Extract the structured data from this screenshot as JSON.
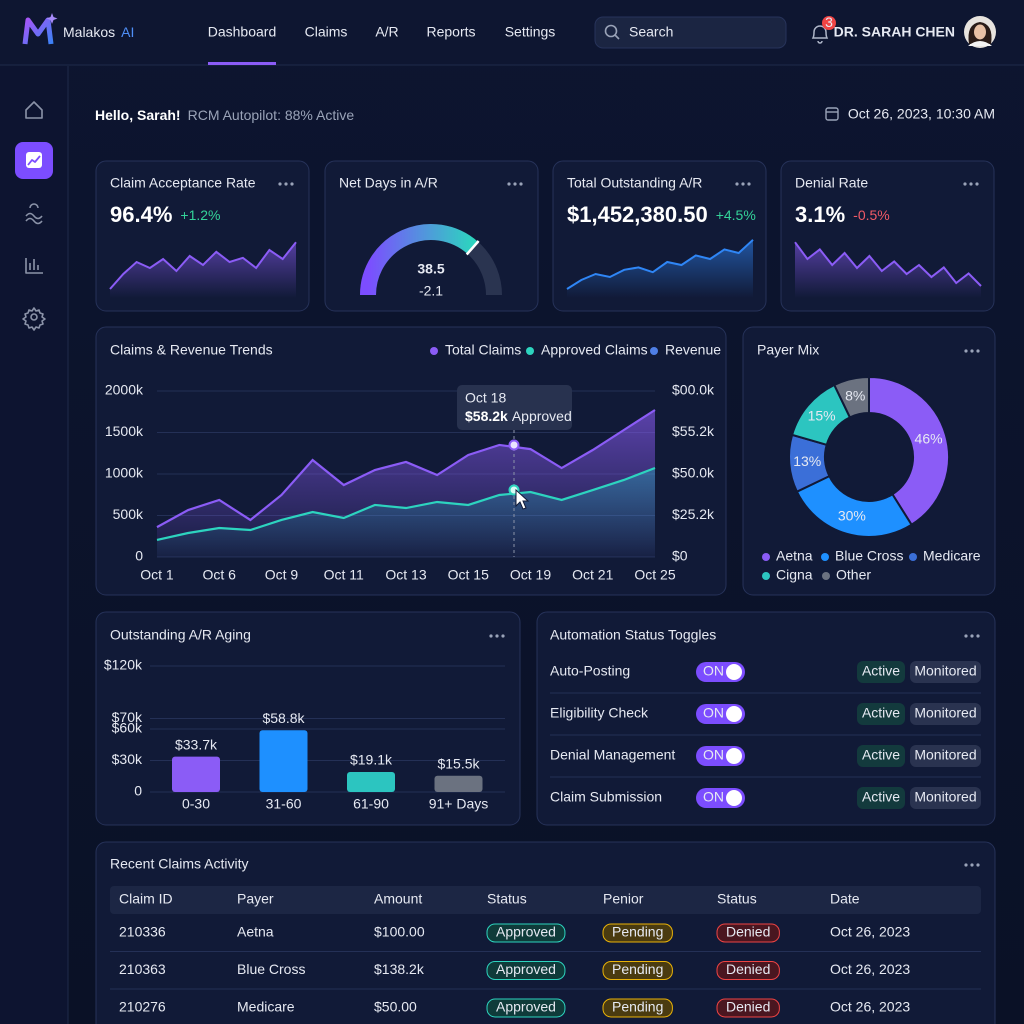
{
  "header": {
    "brand": "Malakos",
    "brand_suffix": "AI",
    "nav": [
      "Dashboard",
      "Claims",
      "A/R",
      "Reports",
      "Settings"
    ],
    "active_nav": 0,
    "search": "Search",
    "notification_count": 3,
    "user": "DR. SARAH CHEN"
  },
  "greeting": {
    "hello": "Hello, Sarah!",
    "status": "RCM Autopilot: 88% Active",
    "datetime": "Oct 26, 2023, 10:30 AM"
  },
  "kpis": [
    {
      "title": "Claim Acceptance Rate",
      "value": "96.4%",
      "change": "+1.2%",
      "change_color": "#34d399",
      "color": "#8b5cf6",
      "sparkline": [
        10,
        35,
        55,
        45,
        60,
        40,
        65,
        50,
        72,
        55,
        62,
        45,
        75,
        60,
        88
      ]
    },
    {
      "title": "Net Days in A/R",
      "value": "38.5",
      "change": "-2.1",
      "change_color": "#f05a66"
    },
    {
      "title": "Total Outstanding A/R",
      "value": "$1,452,380.50",
      "change": "+4.5%",
      "change_color": "#34d399",
      "color": "#2f86f6",
      "sparkline": [
        10,
        25,
        35,
        30,
        42,
        46,
        38,
        55,
        50,
        66,
        60,
        76,
        70,
        92
      ]
    },
    {
      "title": "Denial Rate",
      "value": "3.1%",
      "change": "-0.5%",
      "change_color": "#f05a66",
      "color": "#8b5cf6",
      "sparkline": [
        88,
        60,
        76,
        50,
        70,
        45,
        65,
        40,
        56,
        35,
        50,
        30,
        46,
        20,
        36,
        15
      ]
    }
  ],
  "chart_data": [
    {
      "type": "line",
      "title": "Claims & Revenue Trends",
      "categories": [
        "Oct 1",
        null,
        "Oct 6",
        null,
        "Oct 9",
        null,
        "Oct 11",
        null,
        "Oct 13",
        null,
        "Oct 15",
        null,
        "Oct 19",
        null,
        "Oct 21",
        null,
        "Oct 25"
      ],
      "series": [
        {
          "name": "Total Claims",
          "color": "#8b5cf6",
          "values": [
            360000,
            566000,
            687000,
            446000,
            747000,
            1169000,
            867000,
            1048000,
            1145000,
            988000,
            1229000,
            1350000,
            1300000,
            1072000,
            1289000,
            1530000,
            1771000
          ]
        },
        {
          "name": "Approved Claims",
          "color": "#2dd4bf",
          "values": [
            205000,
            289000,
            349000,
            325000,
            446000,
            542000,
            470000,
            627000,
            590000,
            663000,
            627000,
            747000,
            783000,
            687000,
            807000,
            928000,
            1072000
          ]
        },
        {
          "name": "Revenue",
          "color": "#4f7fe6",
          "values": [
            null,
            null,
            null,
            null,
            null,
            null,
            null,
            null,
            null,
            null,
            null,
            null,
            null,
            null,
            null,
            null,
            null
          ]
        }
      ],
      "ylim": [
        0,
        2000000
      ],
      "yticks": [
        0,
        {
          "value": 500000,
          "label": "500k"
        },
        {
          "value": 1000000,
          "label": "1000k"
        },
        {
          "value": 1500000,
          "label": "1500k"
        },
        {
          "value": 2000000,
          "label": "2000k"
        }
      ],
      "y2_labels": [
        "$0",
        "$25.2k",
        "$50.0k",
        "$55.2k",
        "$00.0k"
      ],
      "tooltip": {
        "title": "Oct 18",
        "value": "$58.2k",
        "label": "Approved"
      },
      "grid": true
    },
    {
      "type": "pie",
      "title": "Payer Mix",
      "categories": [
        "Aetna",
        "Blue Cross",
        "Medicare",
        "Cigna",
        "Other"
      ],
      "values": [
        46,
        30,
        13,
        15,
        8
      ],
      "value_labels": [
        "46%",
        "30%",
        "13%",
        "15%",
        "8%"
      ],
      "colors": [
        "#8b5cf6",
        "#1e90ff",
        "#3b6fd8",
        "#2cc5c0",
        "#6b7280"
      ]
    },
    {
      "type": "bar",
      "title": "Outstanding A/R Aging",
      "categories": [
        "0-30",
        "31-60",
        "61-90",
        "91+ Days"
      ],
      "values": [
        33700,
        58800,
        19100,
        15500
      ],
      "value_labels": [
        "$33.7k",
        "$58.8k",
        "$19.1k",
        "$15.5k"
      ],
      "colors": [
        "#8b5cf6",
        "#1e90ff",
        "#2cc5c0",
        "#6b7280"
      ],
      "ylim": [
        0,
        120000
      ],
      "yticks": [
        0,
        {
          "value": 30000,
          "label": "$30k"
        },
        {
          "value": 60000,
          "label": "$60k"
        },
        {
          "value": 70000,
          "label": "$70k"
        },
        {
          "value": 120000,
          "label": "$120k"
        }
      ],
      "grid": true
    }
  ],
  "automation": {
    "title": "Automation Status Toggles",
    "rows": [
      {
        "name": "Auto-Posting",
        "toggle": "ON",
        "status": "Active",
        "mode": "Monitored"
      },
      {
        "name": "Eligibility Check",
        "toggle": "ON",
        "status": "Active",
        "mode": "Monitored"
      },
      {
        "name": "Denial Management",
        "toggle": "ON",
        "status": "Active",
        "mode": "Monitored"
      },
      {
        "name": "Claim Submission",
        "toggle": "ON",
        "status": "Active",
        "mode": "Monitored"
      }
    ]
  },
  "claims_table": {
    "title": "Recent Claims Activity",
    "columns": [
      "Claim ID",
      "Payer",
      "Amount",
      "Status",
      "Penior",
      "Status",
      "Date"
    ],
    "rows": [
      [
        "210336",
        "Aetna",
        "$100.00",
        "Approved",
        "Pending",
        "Denied",
        "Oct 26, 2023"
      ],
      [
        "210363",
        "Blue Cross",
        "$138.2k",
        "Approved",
        "Pending",
        "Denied",
        "Oct 26, 2023"
      ],
      [
        "210276",
        "Medicare",
        "$50.00",
        "Approved",
        "Pending",
        "Denied",
        "Oct 26, 2023"
      ]
    ]
  }
}
